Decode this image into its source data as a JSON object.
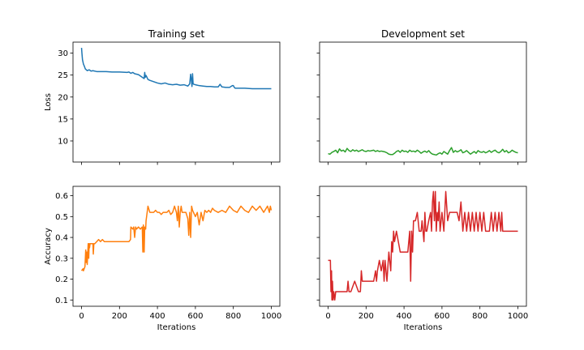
{
  "chart_data": [
    {
      "type": "line",
      "title": "Training set",
      "xlabel": "",
      "ylabel": "Loss",
      "xlim": [
        -45,
        1045
      ],
      "ylim": [
        5.2,
        32.5
      ],
      "xticks": [
        0,
        200,
        400,
        600,
        800,
        1000
      ],
      "xticklabels": [
        "",
        "",
        "",
        "",
        "",
        ""
      ],
      "yticks": [
        10,
        15,
        20,
        25,
        30
      ],
      "yticklabels": [
        "10",
        "15",
        "20",
        "25",
        "30"
      ],
      "color": "#1f77b4",
      "series": [
        {
          "x": [
            0,
            2,
            5,
            10,
            15,
            20,
            30,
            40,
            50,
            60,
            80,
            100,
            130,
            160,
            200,
            240,
            250,
            260,
            270,
            280,
            300,
            310,
            320,
            330,
            333,
            336,
            340,
            350,
            360,
            380,
            400,
            420,
            440,
            460,
            480,
            500,
            520,
            540,
            560,
            570,
            575,
            578,
            582,
            585,
            588,
            592,
            600,
            620,
            640,
            660,
            680,
            700,
            720,
            730,
            735,
            740,
            760,
            780,
            795,
            800,
            805,
            810,
            830,
            860,
            900,
            950,
            1000
          ],
          "y": [
            31.2,
            30.0,
            28.5,
            27.5,
            27.0,
            26.4,
            26.0,
            26.2,
            25.9,
            26.0,
            25.8,
            25.8,
            25.8,
            25.7,
            25.7,
            25.6,
            25.7,
            25.4,
            25.6,
            25.3,
            25.1,
            24.8,
            24.5,
            24.2,
            25.6,
            24.5,
            24.9,
            24.0,
            23.8,
            23.5,
            23.2,
            23.0,
            23.2,
            22.9,
            22.8,
            22.9,
            22.7,
            22.8,
            22.5,
            23.0,
            25.2,
            24.2,
            22.4,
            25.3,
            23.0,
            22.9,
            22.8,
            22.6,
            22.5,
            22.4,
            22.4,
            22.3,
            22.3,
            22.9,
            22.6,
            22.3,
            22.2,
            22.2,
            22.6,
            22.6,
            22.2,
            22.0,
            22.0,
            22.0,
            21.9,
            21.9,
            21.9
          ]
        }
      ]
    },
    {
      "type": "line",
      "title": "Development set",
      "xlabel": "",
      "ylabel": "",
      "xlim": [
        -45,
        1045
      ],
      "ylim": [
        5.2,
        32.5
      ],
      "xticks": [
        0,
        200,
        400,
        600,
        800,
        1000
      ],
      "xticklabels": [
        "",
        "",
        "",
        "",
        "",
        ""
      ],
      "yticks": [
        10,
        15,
        20,
        25,
        30
      ],
      "yticklabels": [
        "",
        "",
        "",
        "",
        ""
      ],
      "color": "#2ca02c",
      "series": [
        {
          "x": [
            0,
            10,
            20,
            30,
            40,
            50,
            60,
            70,
            80,
            90,
            100,
            110,
            120,
            130,
            140,
            150,
            160,
            170,
            180,
            190,
            200,
            210,
            220,
            230,
            240,
            250,
            260,
            270,
            280,
            290,
            300,
            310,
            320,
            330,
            340,
            350,
            360,
            370,
            380,
            390,
            400,
            410,
            420,
            430,
            440,
            450,
            460,
            470,
            480,
            490,
            500,
            510,
            520,
            530,
            540,
            550,
            560,
            570,
            580,
            590,
            600,
            610,
            620,
            630,
            640,
            650,
            660,
            670,
            680,
            690,
            700,
            710,
            720,
            730,
            740,
            750,
            760,
            770,
            780,
            790,
            800,
            810,
            820,
            830,
            840,
            850,
            860,
            870,
            880,
            890,
            900,
            910,
            920,
            930,
            940,
            950,
            960,
            970,
            980,
            990,
            1000
          ],
          "y": [
            7.1,
            7.0,
            7.4,
            7.6,
            7.9,
            7.3,
            8.2,
            7.7,
            7.9,
            7.5,
            8.3,
            7.8,
            7.6,
            8.0,
            7.7,
            7.9,
            7.6,
            7.8,
            8.0,
            7.7,
            7.6,
            7.8,
            7.7,
            7.8,
            7.9,
            7.6,
            7.8,
            7.6,
            7.7,
            7.6,
            7.5,
            7.3,
            7.0,
            6.9,
            6.9,
            7.2,
            7.6,
            7.8,
            7.4,
            7.9,
            7.6,
            7.7,
            7.4,
            7.9,
            7.6,
            7.7,
            7.5,
            7.9,
            7.6,
            7.2,
            7.5,
            7.7,
            7.4,
            7.8,
            7.3,
            7.0,
            6.9,
            6.8,
            7.1,
            7.3,
            7.0,
            7.6,
            7.3,
            7.0,
            7.8,
            8.5,
            7.4,
            7.8,
            7.5,
            7.7,
            8.0,
            7.3,
            7.5,
            7.8,
            7.4,
            7.0,
            7.3,
            7.6,
            7.2,
            7.8,
            7.5,
            7.4,
            7.6,
            7.3,
            7.5,
            7.8,
            7.4,
            7.7,
            7.9,
            7.5,
            7.3,
            7.6,
            8.1,
            7.5,
            7.8,
            7.3,
            7.5,
            7.9,
            7.6,
            7.4,
            7.3
          ]
        }
      ]
    },
    {
      "type": "line",
      "title": "",
      "xlabel": "Iterations",
      "ylabel": "Accuracy",
      "xlim": [
        -45,
        1045
      ],
      "ylim": [
        0.07,
        0.645
      ],
      "xticks": [
        0,
        200,
        400,
        600,
        800,
        1000
      ],
      "xticklabels": [
        "0",
        "200",
        "400",
        "600",
        "800",
        "1000"
      ],
      "yticks": [
        0.1,
        0.2,
        0.3,
        0.4,
        0.5,
        0.6
      ],
      "yticklabels": [
        "0.1",
        "0.2",
        "0.3",
        "0.4",
        "0.5",
        "0.6"
      ],
      "color": "#ff7f0e",
      "series": [
        {
          "x": [
            0,
            8,
            10,
            18,
            20,
            22,
            25,
            28,
            30,
            35,
            38,
            40,
            42,
            45,
            48,
            50,
            55,
            60,
            62,
            65,
            70,
            80,
            90,
            100,
            110,
            120,
            130,
            150,
            170,
            200,
            230,
            250,
            258,
            260,
            270,
            275,
            280,
            285,
            290,
            300,
            310,
            320,
            323,
            326,
            330,
            333,
            338,
            340,
            350,
            360,
            370,
            380,
            390,
            400,
            410,
            420,
            430,
            440,
            450,
            460,
            470,
            480,
            490,
            500,
            505,
            510,
            515,
            520,
            525,
            530,
            540,
            550,
            560,
            565,
            570,
            575,
            580,
            585,
            590,
            600,
            610,
            620,
            630,
            640,
            650,
            660,
            670,
            680,
            690,
            700,
            720,
            740,
            760,
            780,
            800,
            820,
            840,
            860,
            880,
            900,
            920,
            940,
            960,
            980,
            990,
            995,
            1000
          ],
          "y": [
            0.24,
            0.25,
            0.24,
            0.26,
            0.3,
            0.34,
            0.28,
            0.33,
            0.27,
            0.37,
            0.3,
            0.37,
            0.35,
            0.37,
            0.37,
            0.37,
            0.37,
            0.37,
            0.32,
            0.37,
            0.37,
            0.38,
            0.39,
            0.38,
            0.39,
            0.38,
            0.38,
            0.38,
            0.38,
            0.38,
            0.38,
            0.38,
            0.39,
            0.45,
            0.44,
            0.45,
            0.4,
            0.45,
            0.44,
            0.45,
            0.44,
            0.45,
            0.33,
            0.46,
            0.33,
            0.45,
            0.44,
            0.48,
            0.55,
            0.52,
            0.52,
            0.52,
            0.53,
            0.52,
            0.52,
            0.51,
            0.52,
            0.52,
            0.52,
            0.53,
            0.51,
            0.52,
            0.55,
            0.52,
            0.48,
            0.55,
            0.45,
            0.52,
            0.55,
            0.52,
            0.52,
            0.52,
            0.49,
            0.41,
            0.52,
            0.4,
            0.55,
            0.53,
            0.52,
            0.5,
            0.52,
            0.46,
            0.52,
            0.48,
            0.53,
            0.52,
            0.53,
            0.52,
            0.54,
            0.53,
            0.52,
            0.53,
            0.52,
            0.55,
            0.53,
            0.52,
            0.55,
            0.53,
            0.52,
            0.55,
            0.53,
            0.55,
            0.52,
            0.55,
            0.52,
            0.55,
            0.53
          ]
        }
      ]
    },
    {
      "type": "line",
      "title": "",
      "xlabel": "Iterations",
      "ylabel": "",
      "xlim": [
        -45,
        1045
      ],
      "ylim": [
        0.07,
        0.645
      ],
      "xticks": [
        0,
        200,
        400,
        600,
        800,
        1000
      ],
      "xticklabels": [
        "0",
        "200",
        "400",
        "600",
        "800",
        "1000"
      ],
      "yticks": [
        0.1,
        0.2,
        0.3,
        0.4,
        0.5,
        0.6
      ],
      "yticklabels": [
        "",
        "",
        "",
        "",
        "",
        ""
      ],
      "color": "#d62728",
      "series": [
        {
          "x": [
            0,
            12,
            15,
            18,
            20,
            23,
            26,
            30,
            35,
            40,
            60,
            80,
            100,
            105,
            110,
            120,
            140,
            160,
            170,
            175,
            180,
            200,
            220,
            240,
            250,
            255,
            260,
            270,
            280,
            290,
            295,
            300,
            310,
            320,
            330,
            335,
            340,
            345,
            350,
            360,
            370,
            380,
            390,
            400,
            410,
            420,
            425,
            430,
            435,
            440,
            445,
            450,
            460,
            470,
            480,
            490,
            495,
            500,
            505,
            510,
            515,
            520,
            530,
            540,
            545,
            550,
            555,
            560,
            565,
            570,
            575,
            580,
            585,
            590,
            600,
            610,
            620,
            630,
            640,
            650,
            660,
            670,
            680,
            690,
            700,
            710,
            720,
            730,
            740,
            750,
            760,
            770,
            780,
            790,
            800,
            810,
            820,
            830,
            840,
            850,
            860,
            870,
            880,
            890,
            900,
            910,
            915,
            920,
            925,
            930,
            940,
            950,
            960,
            980,
            1000
          ],
          "y": [
            0.29,
            0.29,
            0.14,
            0.24,
            0.1,
            0.19,
            0.1,
            0.14,
            0.1,
            0.14,
            0.14,
            0.14,
            0.14,
            0.19,
            0.14,
            0.14,
            0.19,
            0.14,
            0.14,
            0.24,
            0.19,
            0.19,
            0.19,
            0.19,
            0.24,
            0.19,
            0.24,
            0.29,
            0.24,
            0.29,
            0.19,
            0.29,
            0.19,
            0.33,
            0.24,
            0.38,
            0.33,
            0.43,
            0.38,
            0.43,
            0.38,
            0.33,
            0.33,
            0.33,
            0.33,
            0.33,
            0.38,
            0.43,
            0.19,
            0.43,
            0.33,
            0.48,
            0.48,
            0.52,
            0.43,
            0.43,
            0.48,
            0.43,
            0.38,
            0.52,
            0.43,
            0.43,
            0.48,
            0.52,
            0.43,
            0.57,
            0.62,
            0.48,
            0.62,
            0.43,
            0.52,
            0.48,
            0.57,
            0.43,
            0.52,
            0.43,
            0.62,
            0.48,
            0.52,
            0.52,
            0.52,
            0.52,
            0.52,
            0.48,
            0.57,
            0.43,
            0.52,
            0.43,
            0.52,
            0.43,
            0.52,
            0.43,
            0.52,
            0.43,
            0.52,
            0.43,
            0.52,
            0.43,
            0.43,
            0.43,
            0.52,
            0.43,
            0.52,
            0.43,
            0.52,
            0.43,
            0.52,
            0.43,
            0.43,
            0.43,
            0.43,
            0.43,
            0.43,
            0.43,
            0.43
          ]
        }
      ]
    }
  ]
}
